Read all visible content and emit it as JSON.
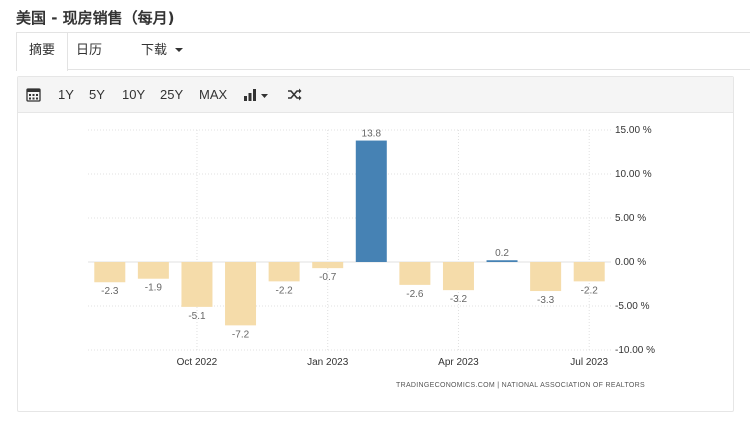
{
  "header": {
    "title": "美国 - 现房销售（每月)"
  },
  "tabs": [
    {
      "label": "摘要",
      "active": true
    },
    {
      "label": "日历",
      "active": false
    },
    {
      "label": "下载",
      "active": false,
      "has_dropdown": true
    }
  ],
  "toolbar": {
    "icons": [
      "calendar-icon",
      "bar-chart-type-icon",
      "shuffle-icon"
    ],
    "ranges": [
      "1Y",
      "5Y",
      "10Y",
      "25Y",
      "MAX"
    ]
  },
  "chart_data": {
    "type": "bar",
    "categories": [
      "2022-08",
      "2022-09",
      "2022-10",
      "2022-11",
      "2022-12",
      "2023-01",
      "2023-02",
      "2023-03",
      "2023-04",
      "2023-05",
      "2023-06",
      "2023-07"
    ],
    "values": [
      -2.3,
      -1.9,
      -5.1,
      -7.2,
      -2.2,
      -0.7,
      13.8,
      -2.6,
      -3.2,
      0.2,
      -3.3,
      -2.2
    ],
    "value_labels": [
      "-2.3",
      "-1.9",
      "-5.1",
      "-7.2",
      "-2.2",
      "-0.7",
      "13.8",
      "-2.6",
      "-3.2",
      "0.2",
      "-3.3",
      "-2.2"
    ],
    "colors": {
      "negative": "#f5dcaa",
      "positive": "#4682b4",
      "grid": "#e0e0e0",
      "label": "#666666"
    },
    "x_ticks": [
      "Oct 2022",
      "Jan 2023",
      "Apr 2023",
      "Jul 2023"
    ],
    "y_ticks": [
      "15.00 %",
      "10.00 %",
      "5.00 %",
      "0.00 %",
      "-5.00 %",
      "-10.00 %"
    ],
    "y_tick_values": [
      15,
      10,
      5,
      0,
      -5,
      -10
    ],
    "ylim": [
      -10,
      15
    ],
    "grid": true,
    "y_axis_position": "right",
    "source": "TRADINGECONOMICS.COM  |  NATIONAL ASSOCIATION OF REALTORS"
  }
}
